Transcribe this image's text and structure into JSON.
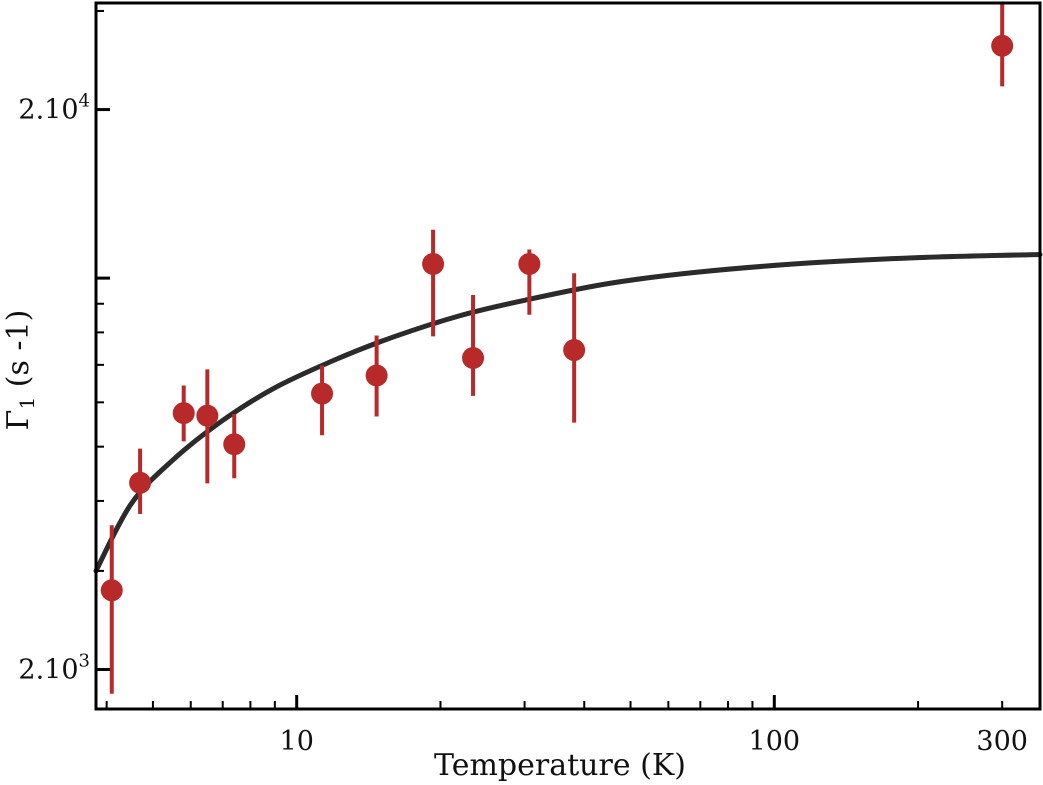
{
  "chart_data": {
    "type": "scatter",
    "title": "",
    "xlabel": "Temperature (K)",
    "ylabel_main": "Γ",
    "ylabel_sub": "1",
    "ylabel_unit": "(s -1)",
    "xscale": "log",
    "yscale": "log",
    "xlim": [
      3.8,
      360
    ],
    "ylim": [
      1700,
      31000
    ],
    "x_major_ticks": [
      {
        "value": 10,
        "label": "10"
      },
      {
        "value": 100,
        "label": "100"
      },
      {
        "value": 300,
        "label": "300"
      }
    ],
    "y_major_ticks": [
      {
        "value": 2000,
        "label_base": "2.10",
        "label_exp": "3"
      },
      {
        "value": 20000,
        "label_base": "2.10",
        "label_exp": "4"
      }
    ],
    "grid": false,
    "colors": {
      "points": "#b82a2a",
      "fit": "#2b2b2b",
      "axes": "#000000"
    },
    "points": [
      {
        "x": 4.1,
        "y": 2770,
        "ylow": 1810,
        "yhigh": 3620
      },
      {
        "x": 4.7,
        "y": 4310,
        "ylow": 3790,
        "yhigh": 4960
      },
      {
        "x": 5.8,
        "y": 5740,
        "ylow": 5110,
        "yhigh": 6430
      },
      {
        "x": 6.5,
        "y": 5680,
        "ylow": 4300,
        "yhigh": 6870
      },
      {
        "x": 7.4,
        "y": 5050,
        "ylow": 4390,
        "yhigh": 5720
      },
      {
        "x": 11.3,
        "y": 6220,
        "ylow": 5240,
        "yhigh": 6980
      },
      {
        "x": 14.7,
        "y": 6700,
        "ylow": 5660,
        "yhigh": 7900
      },
      {
        "x": 19.3,
        "y": 10600,
        "ylow": 7870,
        "yhigh": 12200
      },
      {
        "x": 23.4,
        "y": 7200,
        "ylow": 6160,
        "yhigh": 9330
      },
      {
        "x": 30.7,
        "y": 10600,
        "ylow": 8600,
        "yhigh": 11250
      },
      {
        "x": 38.1,
        "y": 7440,
        "ylow": 5520,
        "yhigh": 10200
      },
      {
        "x": 300,
        "y": 26000,
        "ylow": 22000,
        "yhigh": 31000
      }
    ],
    "fit_curve": {
      "x": [
        3.8,
        4.5,
        5.5,
        7,
        9,
        12,
        16,
        22,
        30,
        45,
        70,
        120,
        200,
        360
      ],
      "y": [
        3000,
        3950,
        4730,
        5570,
        6370,
        7140,
        7860,
        8570,
        9130,
        9780,
        10260,
        10650,
        10880,
        11020
      ]
    }
  }
}
